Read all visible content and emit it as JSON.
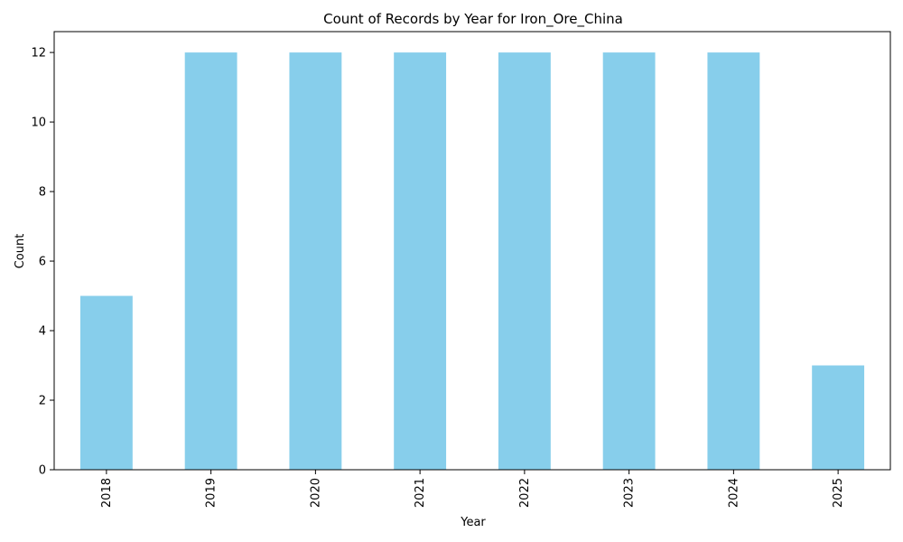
{
  "chart_data": {
    "type": "bar",
    "title": "Count of Records by Year for Iron_Ore_China",
    "xlabel": "Year",
    "ylabel": "Count",
    "categories": [
      "2018",
      "2019",
      "2020",
      "2021",
      "2022",
      "2023",
      "2024",
      "2025"
    ],
    "values": [
      5,
      12,
      12,
      12,
      12,
      12,
      12,
      3
    ],
    "ylim": [
      0,
      12.6
    ],
    "yticks": [
      "0",
      "2",
      "4",
      "6",
      "8",
      "10",
      "12"
    ],
    "bar_color": "#87ceeb",
    "grid": false,
    "legend": "none",
    "xtick_rotation": "vertical"
  }
}
